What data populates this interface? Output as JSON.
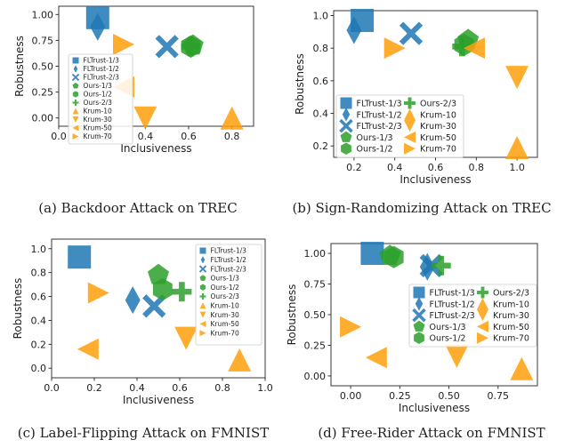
{
  "colors": {
    "blue": "#1f77b4",
    "green": "#2ca02c",
    "orange": "#ff9f0a"
  },
  "legend_entries": [
    {
      "name": "FLTrust-1/3",
      "marker": "square",
      "color": "blue"
    },
    {
      "name": "FLTrust-1/2",
      "marker": "thin-diamond",
      "color": "blue"
    },
    {
      "name": "FLTrust-2/3",
      "marker": "x",
      "color": "blue"
    },
    {
      "name": "Ours-1/3",
      "marker": "pentagon",
      "color": "green"
    },
    {
      "name": "Ours-1/2",
      "marker": "hexagon",
      "color": "green"
    },
    {
      "name": "Ours-2/3",
      "marker": "plus",
      "color": "green"
    },
    {
      "name": "Krum-10",
      "marker": "triangle-up",
      "color": "orange"
    },
    {
      "name": "Krum-30",
      "marker": "triangle-down",
      "color": "orange"
    },
    {
      "name": "Krum-50",
      "marker": "triangle-left",
      "color": "orange"
    },
    {
      "name": "Krum-70",
      "marker": "triangle-right",
      "color": "orange"
    }
  ],
  "chart_data": [
    {
      "type": "scatter",
      "caption": "(a)  Backdoor Attack on TREC",
      "xlabel": "Inclusiveness",
      "ylabel": "Robustness",
      "xlim": [
        0.0,
        0.9
      ],
      "ylim": [
        -0.08,
        1.08
      ],
      "xticks": [
        "0.0",
        "0.2",
        "0.4",
        "0.6",
        "0.8"
      ],
      "yticks": [
        "0.00",
        "0.25",
        "0.50",
        "0.75",
        "1.00"
      ],
      "legend": "middle-left",
      "legend_columns": 1,
      "points": [
        {
          "series": "FLTrust-1/3",
          "x": 0.18,
          "y": 0.97
        },
        {
          "series": "FLTrust-1/2",
          "x": 0.18,
          "y": 0.88
        },
        {
          "series": "FLTrust-2/3",
          "x": 0.5,
          "y": 0.69
        },
        {
          "series": "Ours-1/3",
          "x": 0.62,
          "y": 0.7
        },
        {
          "series": "Ours-1/2",
          "x": 0.61,
          "y": 0.69
        },
        {
          "series": "Ours-2/3",
          "x": 0.61,
          "y": 0.69
        },
        {
          "series": "Krum-10",
          "x": 0.8,
          "y": 0.0
        },
        {
          "series": "Krum-30",
          "x": 0.4,
          "y": 0.0
        },
        {
          "series": "Krum-50",
          "x": 0.3,
          "y": 0.3
        },
        {
          "series": "Krum-70",
          "x": 0.3,
          "y": 0.71
        }
      ]
    },
    {
      "type": "scatter",
      "caption": "(b)  Sign-Randomizing Attack on TREC",
      "xlabel": "Inclusiveness",
      "ylabel": "Robustness",
      "xlim": [
        0.1,
        1.1
      ],
      "ylim": [
        0.13,
        1.03
      ],
      "xticks": [
        "0.2",
        "0.4",
        "0.6",
        "0.8",
        "1.0"
      ],
      "yticks": [
        "0.2",
        "0.4",
        "0.6",
        "0.8",
        "1.0"
      ],
      "legend": "lower-left",
      "legend_columns": 2,
      "points": [
        {
          "series": "FLTrust-1/3",
          "x": 0.24,
          "y": 0.97
        },
        {
          "series": "FLTrust-1/2",
          "x": 0.2,
          "y": 0.91
        },
        {
          "series": "FLTrust-2/3",
          "x": 0.48,
          "y": 0.89
        },
        {
          "series": "Ours-1/3",
          "x": 0.76,
          "y": 0.85
        },
        {
          "series": "Ours-1/2",
          "x": 0.74,
          "y": 0.82
        },
        {
          "series": "Ours-2/3",
          "x": 0.73,
          "y": 0.81
        },
        {
          "series": "Krum-10",
          "x": 1.0,
          "y": 0.19
        },
        {
          "series": "Krum-30",
          "x": 1.0,
          "y": 0.62
        },
        {
          "series": "Krum-50",
          "x": 0.79,
          "y": 0.8
        },
        {
          "series": "Krum-70",
          "x": 0.4,
          "y": 0.8
        }
      ]
    },
    {
      "type": "scatter",
      "caption": "(c)  Label-Flipping Attack on FMNIST",
      "xlabel": "Inclusiveness",
      "ylabel": "Robustness",
      "xlim": [
        0.0,
        1.0
      ],
      "ylim": [
        -0.08,
        1.08
      ],
      "xticks": [
        "0.0",
        "0.2",
        "0.4",
        "0.6",
        "0.8",
        "1.0"
      ],
      "yticks": [
        "0.0",
        "0.2",
        "0.4",
        "0.6",
        "0.8",
        "1.0"
      ],
      "legend": "upper-right",
      "legend_columns": 1,
      "points": [
        {
          "series": "FLTrust-1/3",
          "x": 0.13,
          "y": 0.93
        },
        {
          "series": "FLTrust-1/2",
          "x": 0.38,
          "y": 0.57
        },
        {
          "series": "FLTrust-2/3",
          "x": 0.48,
          "y": 0.52
        },
        {
          "series": "Ours-1/3",
          "x": 0.5,
          "y": 0.78
        },
        {
          "series": "Ours-1/2",
          "x": 0.52,
          "y": 0.66
        },
        {
          "series": "Ours-2/3",
          "x": 0.61,
          "y": 0.64
        },
        {
          "series": "Krum-10",
          "x": 0.88,
          "y": 0.07
        },
        {
          "series": "Krum-30",
          "x": 0.63,
          "y": 0.25
        },
        {
          "series": "Krum-50",
          "x": 0.17,
          "y": 0.16
        },
        {
          "series": "Krum-70",
          "x": 0.22,
          "y": 0.63
        }
      ]
    },
    {
      "type": "scatter",
      "caption": "(d)  Free-Rider Attack on FMNIST",
      "xlabel": "Inclusiveness",
      "ylabel": "Robustness",
      "xlim": [
        -0.1,
        0.95
      ],
      "ylim": [
        -0.08,
        1.08
      ],
      "xticks": [
        "0.00",
        "0.25",
        "0.50",
        "0.75"
      ],
      "yticks": [
        "0.00",
        "0.25",
        "0.50",
        "0.75",
        "1.00"
      ],
      "legend": "center-right",
      "legend_columns": 2,
      "points": [
        {
          "series": "FLTrust-1/3",
          "x": 0.11,
          "y": 1.0
        },
        {
          "series": "FLTrust-1/2",
          "x": 0.39,
          "y": 0.89
        },
        {
          "series": "FLTrust-2/3",
          "x": 0.41,
          "y": 0.9
        },
        {
          "series": "Ours-1/3",
          "x": 0.2,
          "y": 0.98
        },
        {
          "series": "Ours-1/2",
          "x": 0.22,
          "y": 0.97
        },
        {
          "series": "Ours-2/3",
          "x": 0.46,
          "y": 0.9
        },
        {
          "series": "Krum-10",
          "x": 0.87,
          "y": 0.06
        },
        {
          "series": "Krum-30",
          "x": 0.54,
          "y": 0.16
        },
        {
          "series": "Krum-50",
          "x": 0.13,
          "y": 0.15
        },
        {
          "series": "Krum-70",
          "x": 0.0,
          "y": 0.4
        }
      ]
    }
  ]
}
